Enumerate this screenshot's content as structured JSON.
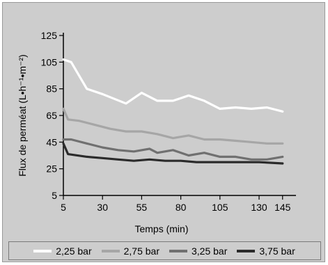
{
  "chart_data": {
    "type": "line",
    "xlabel": "Temps (min)",
    "ylabel": "Flux de perméat (L•h⁻¹•m⁻²)",
    "xlim": [
      5,
      150
    ],
    "ylim": [
      5,
      125
    ],
    "xticks": [
      5,
      30,
      55,
      80,
      105,
      130,
      145
    ],
    "yticks": [
      5,
      25,
      45,
      65,
      85,
      105,
      125
    ],
    "grid": false,
    "legend_position": "bottom",
    "series": [
      {
        "name": "2,25 bar",
        "color": "#ffffff",
        "x": [
          5,
          10,
          20,
          30,
          45,
          55,
          65,
          75,
          85,
          95,
          105,
          115,
          125,
          135,
          145
        ],
        "y": [
          107,
          105,
          85,
          81,
          74,
          82,
          76,
          76,
          80,
          76,
          70,
          71,
          70,
          71,
          68
        ]
      },
      {
        "name": "2,75 bar",
        "color": "#a6a6a6",
        "x": [
          5,
          8,
          15,
          25,
          35,
          45,
          55,
          65,
          75,
          85,
          95,
          105,
          115,
          125,
          135,
          145
        ],
        "y": [
          70,
          62,
          61,
          58,
          55,
          53,
          53,
          51,
          48,
          50,
          47,
          47,
          46,
          45,
          44,
          44
        ]
      },
      {
        "name": "3,25 bar",
        "color": "#707070",
        "x": [
          5,
          10,
          20,
          30,
          40,
          50,
          60,
          65,
          75,
          85,
          95,
          105,
          115,
          125,
          135,
          145
        ],
        "y": [
          47,
          47,
          44,
          41,
          39,
          38,
          40,
          37,
          39,
          35,
          37,
          34,
          34,
          32,
          32,
          34
        ]
      },
      {
        "name": "3,75 bar",
        "color": "#2b2b2b",
        "x": [
          5,
          8,
          20,
          30,
          40,
          50,
          60,
          70,
          80,
          90,
          100,
          110,
          120,
          130,
          145
        ],
        "y": [
          44,
          36,
          34,
          33,
          32,
          31,
          32,
          31,
          31,
          30,
          30,
          30,
          30,
          30,
          29
        ]
      }
    ]
  }
}
